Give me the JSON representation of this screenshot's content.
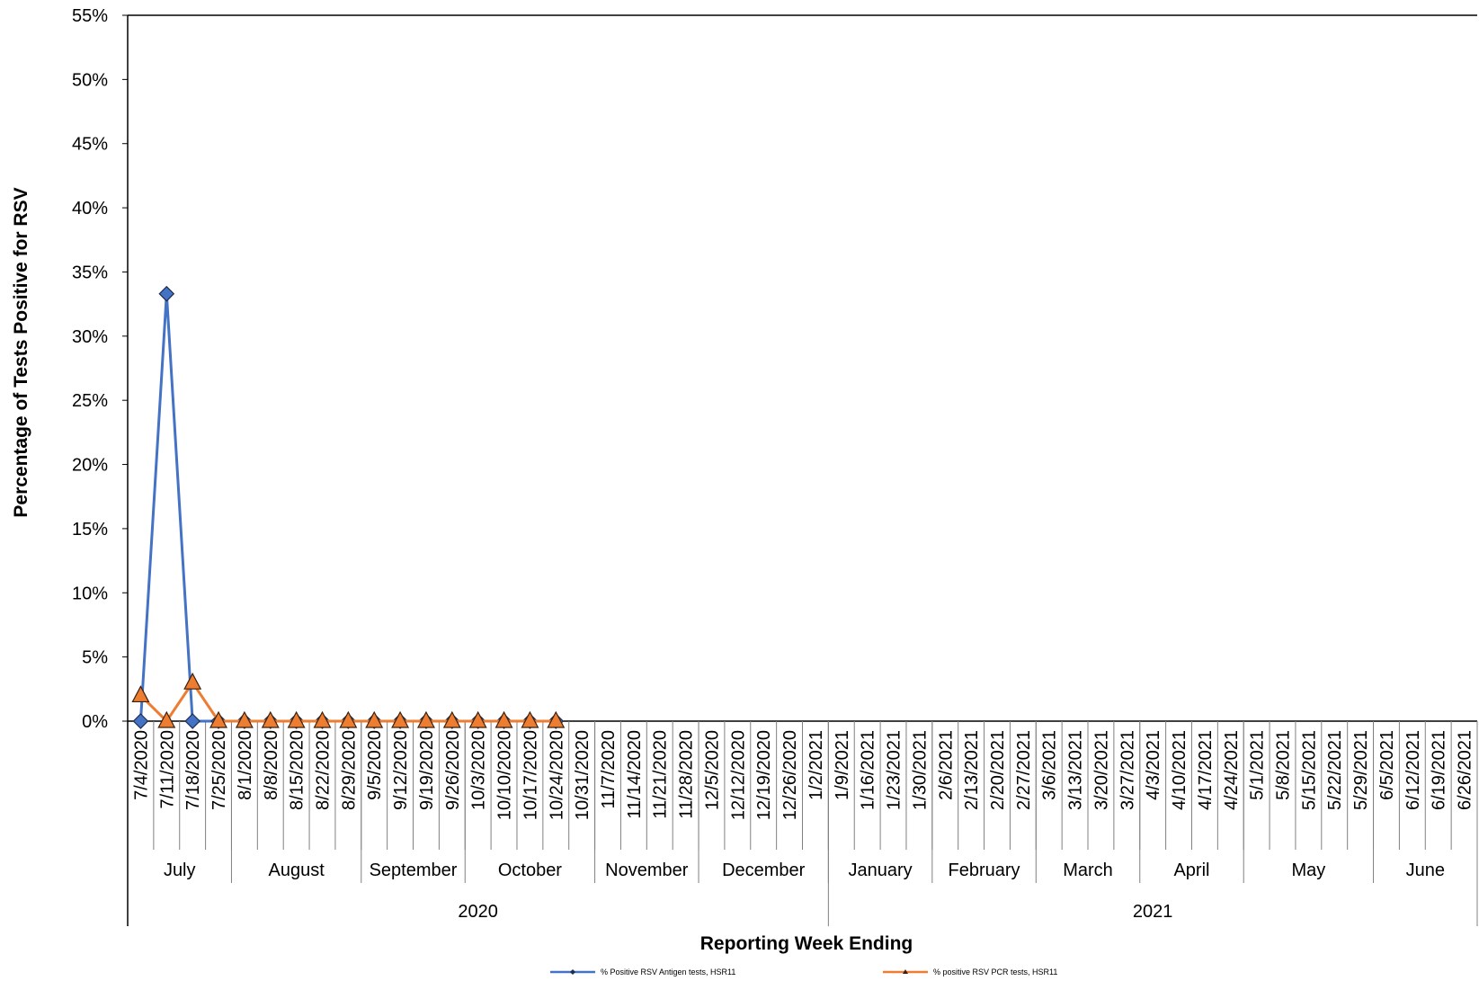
{
  "chart_data": {
    "type": "line",
    "y_axis_label": "Percentage of Tests Positive for RSV",
    "x_axis_label": "Reporting Week Ending",
    "categories": [
      "7/4/2020",
      "7/11/2020",
      "7/18/2020",
      "7/25/2020",
      "8/1/2020",
      "8/8/2020",
      "8/15/2020",
      "8/22/2020",
      "8/29/2020",
      "9/5/2020",
      "9/12/2020",
      "9/19/2020",
      "9/26/2020",
      "10/3/2020",
      "10/10/2020",
      "10/17/2020",
      "10/24/2020",
      "10/31/2020",
      "11/7/2020",
      "11/14/2020",
      "11/21/2020",
      "11/28/2020",
      "12/5/2020",
      "12/12/2020",
      "12/19/2020",
      "12/26/2020",
      "1/2/2021",
      "1/9/2021",
      "1/16/2021",
      "1/23/2021",
      "1/30/2021",
      "2/6/2021",
      "2/13/2021",
      "2/20/2021",
      "2/27/2021",
      "3/6/2021",
      "3/13/2021",
      "3/20/2021",
      "3/27/2021",
      "4/3/2021",
      "4/10/2021",
      "4/17/2021",
      "4/24/2021",
      "5/1/2021",
      "5/8/2021",
      "5/15/2021",
      "5/22/2021",
      "5/29/2021",
      "6/5/2021",
      "6/12/2021",
      "6/19/2021",
      "6/26/2021"
    ],
    "month_groups": [
      {
        "label": "July",
        "count": 4
      },
      {
        "label": "August",
        "count": 5
      },
      {
        "label": "September",
        "count": 4
      },
      {
        "label": "October",
        "count": 5
      },
      {
        "label": "November",
        "count": 4
      },
      {
        "label": "December",
        "count": 5
      },
      {
        "label": "January",
        "count": 4
      },
      {
        "label": "February",
        "count": 4
      },
      {
        "label": "March",
        "count": 4
      },
      {
        "label": "April",
        "count": 4
      },
      {
        "label": "May",
        "count": 5
      },
      {
        "label": "June",
        "count": 4
      }
    ],
    "year_groups": [
      {
        "label": "2020",
        "count": 27
      },
      {
        "label": "2021",
        "count": 25
      }
    ],
    "series": [
      {
        "name": "% Positive RSV Antigen tests, HSR11",
        "color": "#4472c4",
        "marker": "diamond",
        "values": [
          0,
          33.3,
          0,
          0,
          0,
          0,
          0,
          0,
          0,
          0,
          0,
          0,
          0,
          0,
          0,
          0,
          0,
          null,
          null,
          null,
          null,
          null,
          null,
          null,
          null,
          null,
          null,
          null,
          null,
          null,
          null,
          null,
          null,
          null,
          null,
          null,
          null,
          null,
          null,
          null,
          null,
          null,
          null,
          null,
          null,
          null,
          null,
          null,
          null,
          null,
          null,
          null
        ]
      },
      {
        "name": "% positive RSV PCR tests, HSR11",
        "color": "#ed7d31",
        "marker": "triangle",
        "values": [
          2,
          0,
          3,
          0,
          0,
          0,
          0,
          0,
          0,
          0,
          0,
          0,
          0,
          0,
          0,
          0,
          0,
          null,
          null,
          null,
          null,
          null,
          null,
          null,
          null,
          null,
          null,
          null,
          null,
          null,
          null,
          null,
          null,
          null,
          null,
          null,
          null,
          null,
          null,
          null,
          null,
          null,
          null,
          null,
          null,
          null,
          null,
          null,
          null,
          null,
          null,
          null
        ]
      }
    ],
    "ylim": [
      0,
      55
    ],
    "yticks": [
      {
        "value": 0,
        "label": "0%"
      },
      {
        "value": 5,
        "label": "5%"
      },
      {
        "value": 10,
        "label": "10%"
      },
      {
        "value": 15,
        "label": "15%"
      },
      {
        "value": 20,
        "label": "20%"
      },
      {
        "value": 25,
        "label": "25%"
      },
      {
        "value": 30,
        "label": "30%"
      },
      {
        "value": 35,
        "label": "35%"
      },
      {
        "value": 40,
        "label": "40%"
      },
      {
        "value": 45,
        "label": "45%"
      },
      {
        "value": 50,
        "label": "50%"
      },
      {
        "value": 55,
        "label": "55%"
      }
    ],
    "grid": false,
    "legend": "bottom"
  }
}
